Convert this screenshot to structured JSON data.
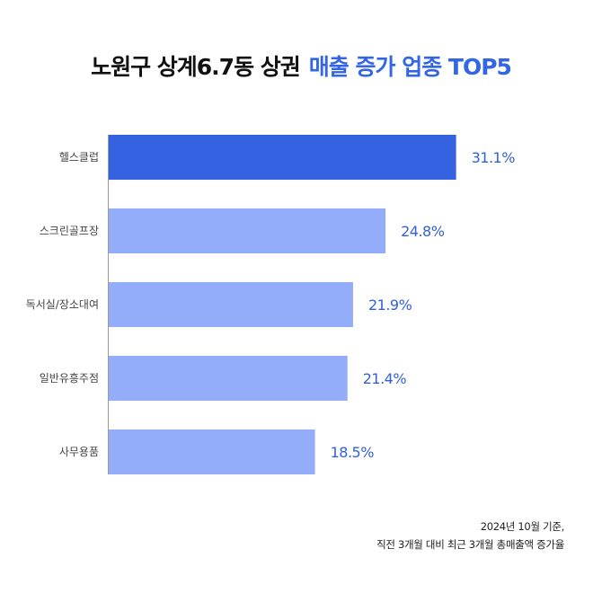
{
  "title": {
    "main": "노원구 상계6.7동 상권",
    "accent": "매출 증가 업종 TOP5"
  },
  "colors": {
    "highlight_bar": "#3462e0",
    "bar": "#93adfb",
    "value_text": "#3160d8",
    "axis": "#9a9a9a",
    "title_accent": "#3366e6"
  },
  "chart_data": {
    "type": "bar",
    "orientation": "horizontal",
    "categories": [
      "헬스클럽",
      "스크린골프장",
      "독서실/장소대여",
      "일반유흥주점",
      "사무용품"
    ],
    "values": [
      31.1,
      24.8,
      21.9,
      21.4,
      18.5
    ],
    "value_labels": [
      "31.1%",
      "24.8%",
      "21.9%",
      "21.4%",
      "18.5%"
    ],
    "highlight_index": 0,
    "xlim": [
      0,
      34.5
    ],
    "grid": false
  },
  "note": {
    "line1": "2024년 10월 기준,",
    "line2": "직전 3개월 대비 최근 3개월 총매출액 증가율"
  }
}
